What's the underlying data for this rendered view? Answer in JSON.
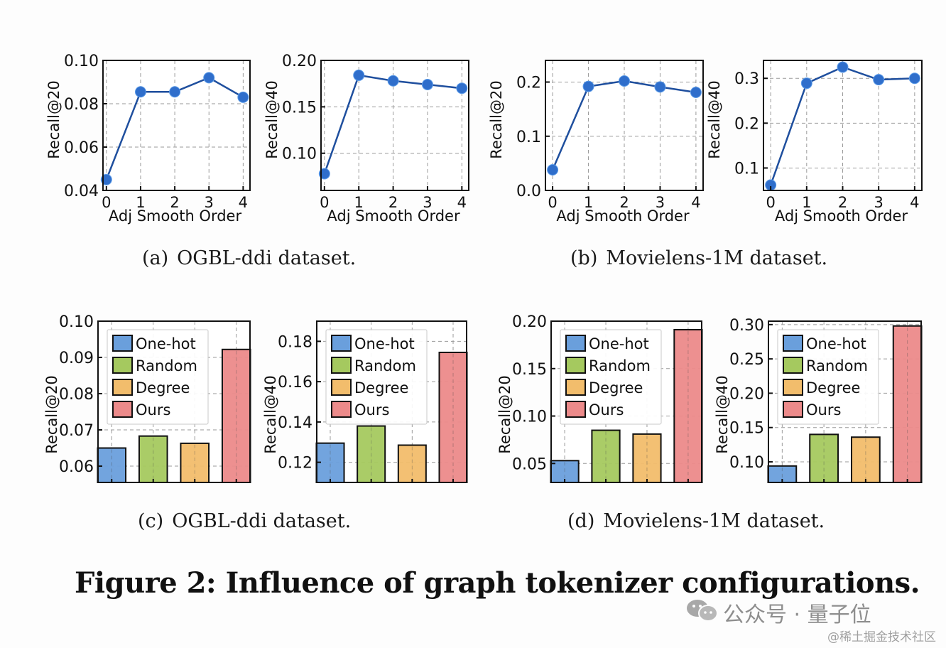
{
  "figure_title": "Figure 2: Influence of graph tokenizer configurations.",
  "captions": {
    "a": {
      "label": "(a)",
      "text": "OGBL-ddi dataset."
    },
    "b": {
      "label": "(b)",
      "text": "Movielens-1M dataset."
    },
    "c": {
      "label": "(c)",
      "text": "OGBL-ddi dataset."
    },
    "d": {
      "label": "(d)",
      "text": "Movielens-1M dataset."
    }
  },
  "watermark": {
    "channel": "公众号 · 量子位",
    "credit": "@稀土掘金技术社区",
    "icon": "wechat-icon"
  },
  "colors": {
    "line": "#2e6cc4",
    "marker": "#2f6ecb",
    "one_hot": "#6a9fdc",
    "random": "#a5c95f",
    "degree": "#f2bd6c",
    "ours": "#ec8a8a",
    "grid": "#9a9a9a"
  },
  "chart_data": [
    {
      "id": "a1",
      "panel": "a",
      "type": "line",
      "title": "",
      "xlabel": "Adj Smooth Order",
      "ylabel": "Recall@20",
      "x": [
        0,
        1,
        2,
        3,
        4
      ],
      "series": [
        {
          "name": "Recall@20",
          "values": [
            0.045,
            0.0855,
            0.0855,
            0.092,
            0.083
          ]
        }
      ],
      "ylim": [
        0.04,
        0.1
      ],
      "yticks": [
        0.04,
        0.06,
        0.08,
        0.1
      ],
      "ytick_labels": [
        "0.04",
        "0.06",
        "0.08",
        "0.10"
      ],
      "xticks": [
        0,
        1,
        2,
        3,
        4
      ],
      "xtick_labels": [
        "0",
        "1",
        "2",
        "3",
        "4"
      ],
      "xlim": [
        -0.1,
        4.2
      ],
      "grid": true
    },
    {
      "id": "a2",
      "panel": "a",
      "type": "line",
      "title": "",
      "xlabel": "Adj Smooth Order",
      "ylabel": "Recall@40",
      "x": [
        0,
        1,
        2,
        3,
        4
      ],
      "series": [
        {
          "name": "Recall@40",
          "values": [
            0.078,
            0.184,
            0.178,
            0.174,
            0.17
          ]
        }
      ],
      "ylim": [
        0.06,
        0.2
      ],
      "yticks": [
        0.1,
        0.15,
        0.2
      ],
      "ytick_labels": [
        "0.10",
        "0.15",
        "0.20"
      ],
      "xticks": [
        0,
        1,
        2,
        3,
        4
      ],
      "xtick_labels": [
        "0",
        "1",
        "2",
        "3",
        "4"
      ],
      "xlim": [
        -0.1,
        4.2
      ],
      "grid": true
    },
    {
      "id": "b1",
      "panel": "b",
      "type": "line",
      "title": "",
      "xlabel": "Adj Smooth Order",
      "ylabel": "Recall@20",
      "x": [
        0,
        1,
        2,
        3,
        4
      ],
      "series": [
        {
          "name": "Recall@20",
          "values": [
            0.038,
            0.192,
            0.202,
            0.191,
            0.181
          ]
        }
      ],
      "ylim": [
        0.0,
        0.24
      ],
      "yticks": [
        0.0,
        0.1,
        0.2
      ],
      "ytick_labels": [
        "0.0",
        "0.1",
        "0.2"
      ],
      "xticks": [
        0,
        1,
        2,
        3,
        4
      ],
      "xtick_labels": [
        "0",
        "1",
        "2",
        "3",
        "4"
      ],
      "xlim": [
        -0.2,
        4.2
      ],
      "grid": true
    },
    {
      "id": "b2",
      "panel": "b",
      "type": "line",
      "title": "",
      "xlabel": "Adj Smooth Order",
      "ylabel": "Recall@40",
      "x": [
        0,
        1,
        2,
        3,
        4
      ],
      "series": [
        {
          "name": "Recall@40",
          "values": [
            0.062,
            0.289,
            0.325,
            0.297,
            0.3
          ]
        }
      ],
      "ylim": [
        0.05,
        0.34
      ],
      "yticks": [
        0.1,
        0.2,
        0.3
      ],
      "ytick_labels": [
        "0.1",
        "0.2",
        "0.3"
      ],
      "xticks": [
        0,
        1,
        2,
        3,
        4
      ],
      "xtick_labels": [
        "0",
        "1",
        "2",
        "3",
        "4"
      ],
      "xlim": [
        -0.2,
        4.2
      ],
      "grid": true
    },
    {
      "id": "c1",
      "panel": "c",
      "type": "bar",
      "title": "",
      "xlabel": "",
      "ylabel": "Recall@20",
      "categories": [
        "One-hot",
        "Random",
        "Degree",
        "Ours"
      ],
      "values": [
        0.065,
        0.0683,
        0.0663,
        0.0922
      ],
      "ylim": [
        0.0555,
        0.1
      ],
      "yticks": [
        0.06,
        0.07,
        0.08,
        0.09,
        0.1
      ],
      "ytick_labels": [
        "0.06",
        "0.07",
        "0.08",
        "0.09",
        "0.10"
      ],
      "legend": {
        "entries": [
          "One-hot",
          "Random",
          "Degree",
          "Ours"
        ],
        "placement": "upper-left"
      },
      "grid": true
    },
    {
      "id": "c2",
      "panel": "c",
      "type": "bar",
      "title": "",
      "xlabel": "",
      "ylabel": "Recall@40",
      "categories": [
        "One-hot",
        "Random",
        "Degree",
        "Ours"
      ],
      "values": [
        0.1295,
        0.138,
        0.1285,
        0.1745
      ],
      "ylim": [
        0.11,
        0.19
      ],
      "yticks": [
        0.12,
        0.14,
        0.16,
        0.18
      ],
      "ytick_labels": [
        "0.12",
        "0.14",
        "0.16",
        "0.18"
      ],
      "legend": {
        "entries": [
          "One-hot",
          "Random",
          "Degree",
          "Ours"
        ],
        "placement": "upper-left"
      },
      "grid": true
    },
    {
      "id": "d1",
      "panel": "d",
      "type": "bar",
      "title": "",
      "xlabel": "",
      "ylabel": "Recall@20",
      "categories": [
        "One-hot",
        "Random",
        "Degree",
        "Ours"
      ],
      "values": [
        0.053,
        0.085,
        0.081,
        0.191
      ],
      "ylim": [
        0.03,
        0.2
      ],
      "yticks": [
        0.05,
        0.1,
        0.15,
        0.2
      ],
      "ytick_labels": [
        "0.05",
        "0.10",
        "0.15",
        "0.20"
      ],
      "legend": {
        "entries": [
          "One-hot",
          "Random",
          "Degree",
          "Ours"
        ],
        "placement": "upper-left"
      },
      "grid": true
    },
    {
      "id": "d2",
      "panel": "d",
      "type": "bar",
      "title": "",
      "xlabel": "",
      "ylabel": "Recall@40",
      "categories": [
        "One-hot",
        "Random",
        "Degree",
        "Ours"
      ],
      "values": [
        0.094,
        0.14,
        0.136,
        0.298
      ],
      "ylim": [
        0.07,
        0.305
      ],
      "yticks": [
        0.1,
        0.15,
        0.2,
        0.25,
        0.3
      ],
      "ytick_labels": [
        "0.10",
        "0.15",
        "0.20",
        "0.25",
        "0.30"
      ],
      "legend": {
        "entries": [
          "One-hot",
          "Random",
          "Degree",
          "Ours"
        ],
        "placement": "upper-left"
      },
      "grid": true
    }
  ]
}
